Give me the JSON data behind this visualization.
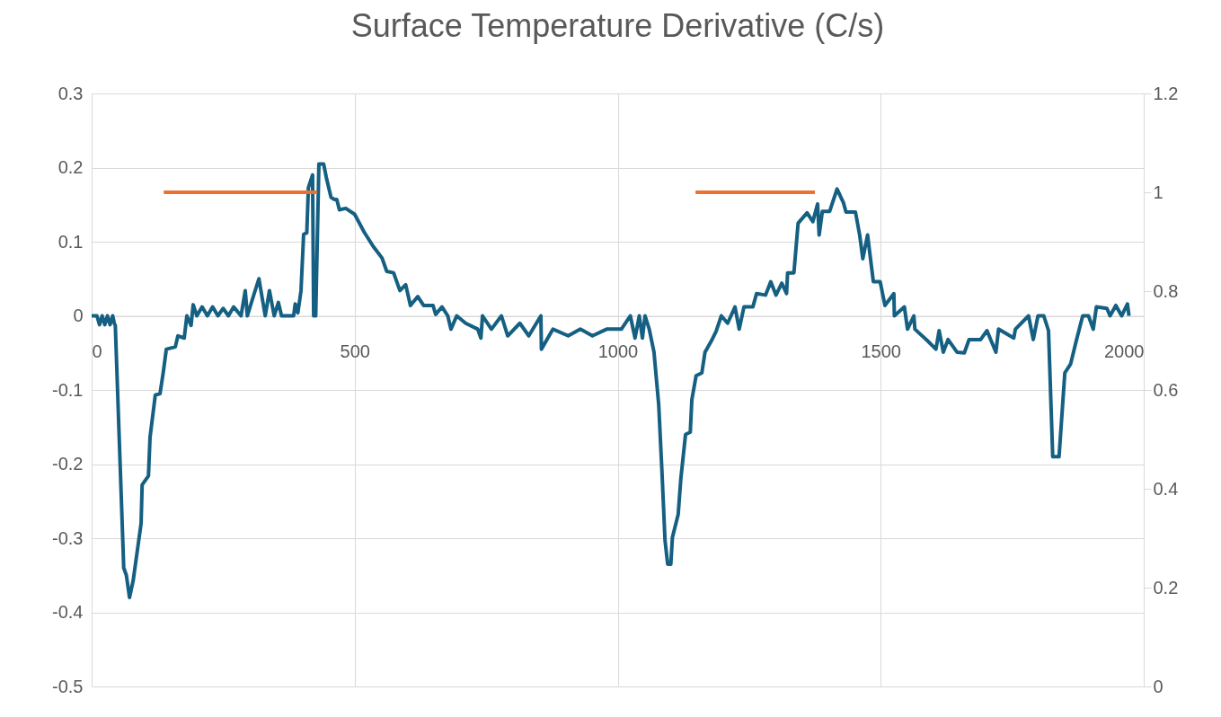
{
  "chart_data": {
    "type": "line",
    "title": "Surface Temperature Derivative (C/s)",
    "xlim": [
      0,
      2000
    ],
    "xticks": [
      0,
      500,
      1000,
      1500,
      2000
    ],
    "ylim": [
      -0.5,
      0.3
    ],
    "yticks": [
      -0.5,
      -0.4,
      -0.3,
      -0.2,
      -0.1,
      0,
      0.1,
      0.2,
      0.3
    ],
    "y2lim": [
      0,
      1.2
    ],
    "y2ticks": [
      0,
      0.2,
      0.4,
      0.6,
      0.8,
      1,
      1.2
    ],
    "grid": true,
    "legend": false,
    "marker": "none",
    "line_style": "solid",
    "series": [
      {
        "color": "#156082",
        "x": [
          0,
          10,
          15,
          20,
          25,
          30,
          35,
          40,
          43,
          45,
          61,
          66,
          72,
          79,
          94,
          96,
          108,
          111,
          121,
          130,
          136,
          142,
          159,
          164,
          176,
          181,
          189,
          193,
          200,
          210,
          220,
          230,
          240,
          250,
          260,
          270,
          284,
          292,
          296,
          309,
          318,
          330,
          338,
          347,
          355,
          361,
          384,
          387,
          392,
          398,
          403,
          409,
          412,
          420,
          422,
          426,
          432,
          441,
          446,
          455,
          461,
          466,
          471,
          483,
          500,
          518,
          535,
          552,
          561,
          574,
          586,
          597,
          606,
          620,
          631,
          649,
          654,
          666,
          677,
          683,
          694,
          711,
          734,
          740,
          743,
          760,
          779,
          791,
          814,
          831,
          854,
          855,
          877,
          906,
          929,
          952,
          979,
          1007,
          1024,
          1033,
          1041,
          1047,
          1052,
          1060,
          1069,
          1078,
          1084,
          1090,
          1095,
          1101,
          1104,
          1115,
          1120,
          1129,
          1138,
          1141,
          1149,
          1160,
          1166,
          1178,
          1187,
          1197,
          1209,
          1223,
          1231,
          1240,
          1257,
          1264,
          1281,
          1291,
          1301,
          1312,
          1321,
          1323,
          1335,
          1343,
          1360,
          1371,
          1380,
          1383,
          1389,
          1403,
          1417,
          1429,
          1434,
          1452,
          1460,
          1466,
          1475,
          1486,
          1499,
          1508,
          1525,
          1526,
          1545,
          1551,
          1563,
          1565,
          1588,
          1605,
          1611,
          1619,
          1628,
          1645,
          1659,
          1668,
          1690,
          1702,
          1719,
          1724,
          1753,
          1756,
          1781,
          1790,
          1799,
          1810,
          1819,
          1827,
          1839,
          1850,
          1861,
          1872,
          1884,
          1895,
          1904,
          1910,
          1930,
          1936,
          1947,
          1958,
          1969,
          1972
        ],
        "values": [
          0,
          0,
          -0.012,
          0,
          -0.012,
          0,
          -0.012,
          0,
          -0.01,
          -0.013,
          -0.34,
          -0.35,
          -0.38,
          -0.357,
          -0.28,
          -0.228,
          -0.216,
          -0.164,
          -0.107,
          -0.105,
          -0.077,
          -0.045,
          -0.042,
          -0.027,
          -0.03,
          0,
          -0.013,
          0.015,
          0,
          0.012,
          0,
          0.012,
          0,
          0.01,
          0,
          0.012,
          0,
          0.034,
          0,
          0.03,
          0.05,
          0,
          0.034,
          0,
          0.018,
          0,
          0,
          0.016,
          0.004,
          0.034,
          0.11,
          0.112,
          0.173,
          0.19,
          0,
          0,
          0.205,
          0.205,
          0.187,
          0.16,
          0.157,
          0.157,
          0.143,
          0.145,
          0.137,
          0.113,
          0.094,
          0.078,
          0.06,
          0.058,
          0.034,
          0.042,
          0.014,
          0.026,
          0.014,
          0.014,
          0.002,
          0.012,
          0,
          -0.018,
          0,
          -0.01,
          -0.018,
          -0.03,
          0,
          -0.018,
          0,
          -0.027,
          -0.01,
          -0.027,
          0,
          -0.045,
          -0.018,
          -0.027,
          -0.018,
          -0.027,
          -0.018,
          -0.018,
          0,
          -0.03,
          0,
          -0.03,
          0,
          -0.018,
          -0.049,
          -0.12,
          -0.208,
          -0.303,
          -0.335,
          -0.335,
          -0.299,
          -0.268,
          -0.22,
          -0.16,
          -0.157,
          -0.113,
          -0.081,
          -0.077,
          -0.049,
          -0.034,
          -0.021,
          0,
          -0.01,
          0.012,
          -0.018,
          0.012,
          0.012,
          0.03,
          0.028,
          0.046,
          0.028,
          0.044,
          0.03,
          0.058,
          0.058,
          0.125,
          0.139,
          0.127,
          0.151,
          0.109,
          0.141,
          0.141,
          0.171,
          0.153,
          0.14,
          0.14,
          0.109,
          0.077,
          0.109,
          0.046,
          0.046,
          0.014,
          0.03,
          0,
          0.012,
          -0.018,
          0,
          -0.018,
          -0.033,
          -0.045,
          -0.02,
          -0.049,
          -0.032,
          -0.049,
          -0.05,
          -0.032,
          -0.032,
          -0.02,
          -0.049,
          -0.018,
          -0.03,
          -0.018,
          0,
          -0.032,
          0,
          0,
          -0.02,
          -0.19,
          -0.19,
          -0.077,
          -0.065,
          -0.033,
          0,
          0,
          -0.018,
          0.012,
          0.01,
          0,
          0.014,
          0,
          0.016,
          0
        ]
      },
      {
        "color": "#e97132",
        "axis": "y2",
        "x": [
          137,
          429
        ],
        "values": [
          1,
          1
        ]
      },
      {
        "color": "#e97132",
        "axis": "y2",
        "x": [
          1148,
          1375
        ],
        "values": [
          1,
          1
        ]
      }
    ]
  }
}
